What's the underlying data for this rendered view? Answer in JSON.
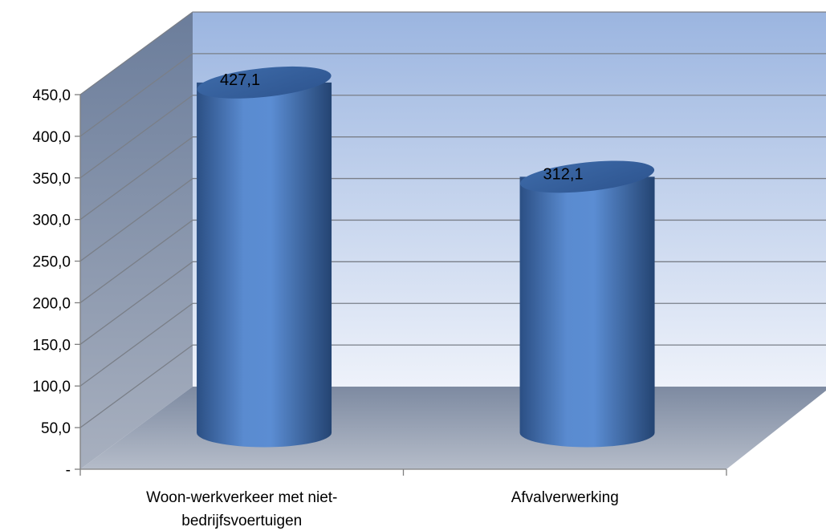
{
  "chart_data": {
    "type": "bar",
    "style": "3d-cylinder",
    "categories": [
      "Woon-werkverkeer met niet-bedrijfsvoertuigen",
      "Afvalverwerking"
    ],
    "category_label_lines": [
      [
        "Woon-werkverkeer met niet-",
        "bedrijfsvoertuigen"
      ],
      [
        "Afvalverwerking"
      ]
    ],
    "values": [
      427.1,
      312.1
    ],
    "data_labels": [
      "427,1",
      "312,1"
    ],
    "y_ticks": [
      0,
      50,
      100,
      150,
      200,
      250,
      300,
      350,
      400,
      450
    ],
    "y_tick_labels": [
      "-",
      "50,0",
      "100,0",
      "150,0",
      "200,0",
      "250,0",
      "300,0",
      "350,0",
      "400,0",
      "450,0"
    ],
    "ylim": [
      0,
      450
    ],
    "title": "",
    "xlabel": "",
    "ylabel": "",
    "grid": true,
    "legend": "none",
    "colors": {
      "bar": "#4f81bd",
      "bar_dark": "#2a4f82",
      "back_wall_top": "#9bb5e0",
      "back_wall_bottom": "#e8eef8",
      "side_wall": "#7f8fa8",
      "floor": "#a3acbd"
    }
  }
}
